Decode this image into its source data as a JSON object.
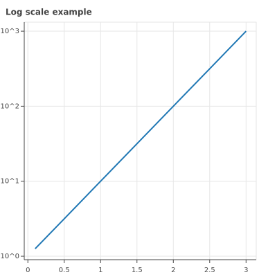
{
  "chart_data": {
    "type": "line",
    "title": "Log scale example",
    "x": [
      0.1,
      0.5,
      1,
      1.5,
      2,
      2.5,
      3
    ],
    "values": [
      1.26,
      3.16,
      10,
      31.6,
      100,
      316,
      1000
    ],
    "color": "#1f77b4",
    "xlim": [
      -0.05,
      3.14
    ],
    "xticks": [
      0,
      0.5,
      1,
      1.5,
      2,
      2.5,
      3
    ],
    "ylim": [
      0.9,
      1320
    ],
    "yscale": "log",
    "yticks": [
      {
        "value": 1,
        "label": "10^0"
      },
      {
        "value": 10,
        "label": "10^1"
      },
      {
        "value": 100,
        "label": "10^2"
      },
      {
        "value": 1000,
        "label": "10^3"
      }
    ],
    "grid": true
  }
}
